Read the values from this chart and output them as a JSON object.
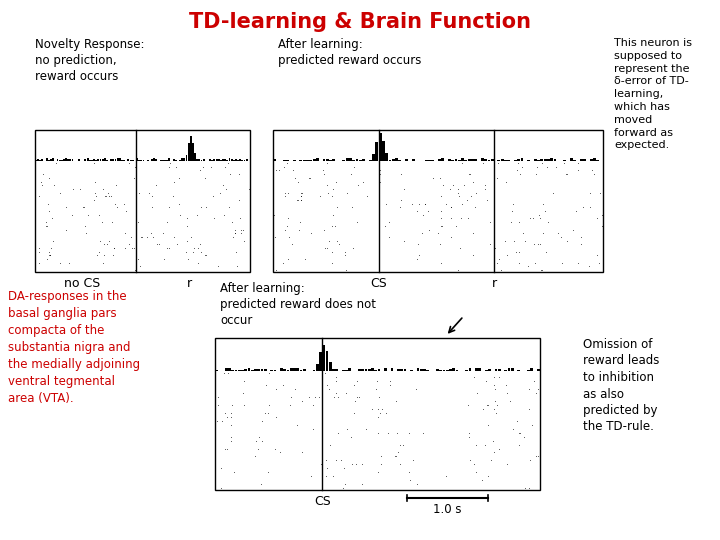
{
  "title": "TD-learning & Brain Function",
  "title_color": "#cc0000",
  "title_fontsize": 15,
  "bg_color": "#ffffff",
  "panel1_label": "Novelty Response:\nno prediction,\nreward occurs",
  "panel2_label": "After learning:\npredicted reward occurs",
  "panel3_label": "After learning:\npredicted reward does not\noccur",
  "bottom_left_text": "DA-responses in the\nbasal ganglia pars\ncompacta of the\nsubstantia nigra and\nthe medially adjoining\nventral tegmental\narea (VTA).",
  "bottom_left_color": "#cc0000",
  "top_right_text": "This neuron is\nsupposed to\nrepresent the\nδ-error of TD-\nlearning,\nwhich has\nmoved\nforward as\nexpected.",
  "bottom_right_text": "Omission of\nreward leads\nto inhibition\nas also\npredicted by\nthe TD-rule.",
  "label_no_cs": "no CS",
  "label_r_top": "r",
  "label_cs_mid": "CS",
  "label_r_mid": "r",
  "label_cs_bot": "CS",
  "label_scale": "1.0 s"
}
